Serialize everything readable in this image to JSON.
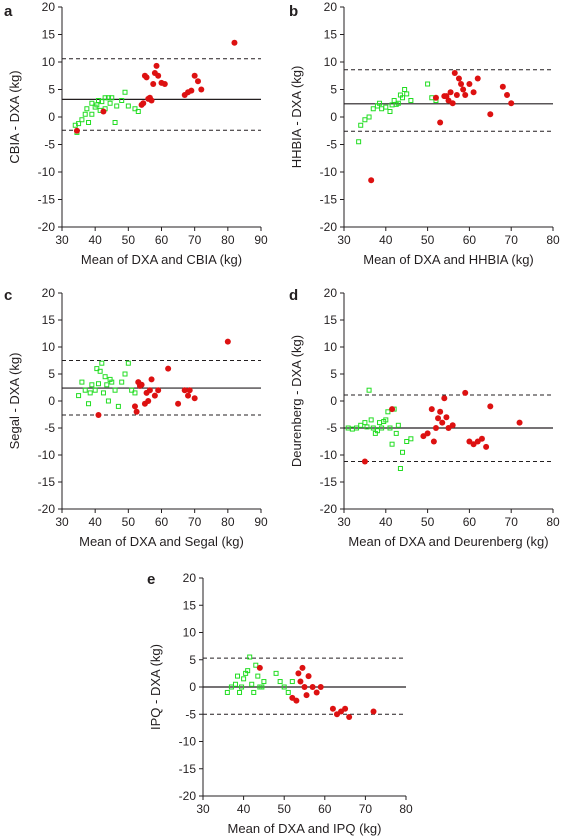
{
  "chart_data": [
    {
      "panel": "a",
      "type": "scatter",
      "xlabel": "Mean of DXA and CBIA (kg)",
      "ylabel": "CBIA - DXA (kg)",
      "xlim": [
        30,
        90
      ],
      "ylim": [
        -20,
        20
      ],
      "xticks": [
        30,
        40,
        50,
        60,
        70,
        80,
        90
      ],
      "yticks": [
        -20,
        -15,
        -10,
        -5,
        0,
        5,
        10,
        15,
        20
      ],
      "mean_line": 3.2,
      "upper_loa": 10.6,
      "lower_loa": -2.4,
      "series": [
        {
          "marker": "open-square",
          "color": "#22dd22",
          "points": [
            [
              34,
              -1.5
            ],
            [
              34.5,
              -2.8
            ],
            [
              35,
              -1.2
            ],
            [
              36,
              -0.5
            ],
            [
              37,
              0.5
            ],
            [
              37.5,
              1.5
            ],
            [
              38,
              -1
            ],
            [
              39,
              2.5
            ],
            [
              39,
              0.5
            ],
            [
              40,
              1.8
            ],
            [
              40.5,
              2.2
            ],
            [
              41,
              3
            ],
            [
              41.5,
              1.2
            ],
            [
              42,
              2.8
            ],
            [
              43,
              3.5
            ],
            [
              43,
              1.5
            ],
            [
              44,
              3.5
            ],
            [
              44.5,
              2.5
            ],
            [
              45,
              3.5
            ],
            [
              46,
              -1
            ],
            [
              46.5,
              2
            ],
            [
              48,
              3
            ],
            [
              49,
              4.5
            ],
            [
              50,
              2
            ],
            [
              52,
              1.5
            ],
            [
              53,
              1
            ]
          ]
        },
        {
          "marker": "filled-circle",
          "color": "#dd1111",
          "points": [
            [
              34.5,
              -2.5
            ],
            [
              42.5,
              1
            ],
            [
              54,
              2.2
            ],
            [
              54.5,
              2.5
            ],
            [
              55,
              7.5
            ],
            [
              55.5,
              7.2
            ],
            [
              56,
              3.3
            ],
            [
              56.5,
              3.5
            ],
            [
              57,
              3
            ],
            [
              57.5,
              6
            ],
            [
              58,
              8
            ],
            [
              58.5,
              9.3
            ],
            [
              59,
              7.5
            ],
            [
              60,
              6.2
            ],
            [
              61,
              6
            ],
            [
              67,
              4
            ],
            [
              68,
              4.5
            ],
            [
              69,
              4.8
            ],
            [
              70,
              7.5
            ],
            [
              71,
              6.5
            ],
            [
              72,
              5
            ],
            [
              82,
              13.5
            ]
          ]
        }
      ]
    },
    {
      "panel": "b",
      "type": "scatter",
      "xlabel": "Mean of DXA and HHBIA (kg)",
      "ylabel": "HHBIA - DXA (kg)",
      "xlim": [
        30,
        80
      ],
      "ylim": [
        -20,
        20
      ],
      "xticks": [
        30,
        40,
        50,
        60,
        70,
        80
      ],
      "yticks": [
        -20,
        -15,
        -10,
        -5,
        0,
        5,
        10,
        15,
        20
      ],
      "mean_line": 2.4,
      "upper_loa": 8.6,
      "lower_loa": -2.6,
      "series": [
        {
          "marker": "open-square",
          "color": "#22dd22",
          "points": [
            [
              33.5,
              -4.5
            ],
            [
              34,
              -1.5
            ],
            [
              35,
              -0.5
            ],
            [
              36,
              0
            ],
            [
              37,
              1.5
            ],
            [
              38,
              2
            ],
            [
              38.5,
              2.5
            ],
            [
              39,
              1.5
            ],
            [
              40,
              1.8
            ],
            [
              41,
              1
            ],
            [
              41.5,
              2.2
            ],
            [
              42,
              3
            ],
            [
              42.5,
              2.3
            ],
            [
              43,
              2.5
            ],
            [
              43.5,
              4
            ],
            [
              44,
              3.5
            ],
            [
              44.5,
              5
            ],
            [
              45,
              4.2
            ],
            [
              46,
              3
            ],
            [
              50,
              6
            ],
            [
              51,
              3.5
            ],
            [
              52,
              3
            ]
          ]
        },
        {
          "marker": "filled-circle",
          "color": "#dd1111",
          "points": [
            [
              36.5,
              -11.5
            ],
            [
              52,
              3.5
            ],
            [
              53,
              -1
            ],
            [
              54,
              3.8
            ],
            [
              54.5,
              3.8
            ],
            [
              55,
              3
            ],
            [
              55.5,
              4.5
            ],
            [
              56,
              2.5
            ],
            [
              56.5,
              8
            ],
            [
              57,
              4
            ],
            [
              57.5,
              7
            ],
            [
              58,
              6
            ],
            [
              58.5,
              5
            ],
            [
              59,
              4
            ],
            [
              60,
              6
            ],
            [
              61,
              4.5
            ],
            [
              62,
              7
            ],
            [
              65,
              0.5
            ],
            [
              68,
              5.5
            ],
            [
              69,
              4
            ],
            [
              70,
              2.5
            ]
          ]
        }
      ]
    },
    {
      "panel": "c",
      "type": "scatter",
      "xlabel": "Mean of DXA and Segal (kg)",
      "ylabel": "Segal - DXA (kg)",
      "xlim": [
        30,
        90
      ],
      "ylim": [
        -20,
        20
      ],
      "xticks": [
        30,
        40,
        50,
        60,
        70,
        80,
        90
      ],
      "yticks": [
        -20,
        -15,
        -10,
        -5,
        0,
        5,
        10,
        15,
        20
      ],
      "mean_line": 2.4,
      "upper_loa": 7.5,
      "lower_loa": -2.6,
      "series": [
        {
          "marker": "open-square",
          "color": "#22dd22",
          "points": [
            [
              35,
              1
            ],
            [
              36,
              3.5
            ],
            [
              37,
              2
            ],
            [
              38,
              -0.5
            ],
            [
              38.5,
              1.5
            ],
            [
              39,
              3
            ],
            [
              40,
              2
            ],
            [
              40.5,
              6
            ],
            [
              41,
              3.2
            ],
            [
              41.5,
              5.5
            ],
            [
              42,
              7
            ],
            [
              42.5,
              1.5
            ],
            [
              43,
              4.5
            ],
            [
              43.5,
              3
            ],
            [
              44,
              0
            ],
            [
              44.5,
              4
            ],
            [
              45,
              3.5
            ],
            [
              46,
              2
            ],
            [
              47,
              -1
            ],
            [
              48,
              3.5
            ],
            [
              49,
              5
            ],
            [
              50,
              7
            ],
            [
              51,
              2
            ],
            [
              52,
              1.5
            ]
          ]
        },
        {
          "marker": "filled-circle",
          "color": "#dd1111",
          "points": [
            [
              41,
              -2.6
            ],
            [
              52,
              -1
            ],
            [
              52.5,
              -2
            ],
            [
              53,
              3.5
            ],
            [
              53.5,
              2.8
            ],
            [
              54,
              3
            ],
            [
              55,
              -0.5
            ],
            [
              55.5,
              1.5
            ],
            [
              56,
              0
            ],
            [
              56.5,
              2
            ],
            [
              57,
              4
            ],
            [
              58,
              1
            ],
            [
              59,
              2
            ],
            [
              62,
              6
            ],
            [
              65,
              -0.5
            ],
            [
              67,
              2
            ],
            [
              68,
              1
            ],
            [
              68.5,
              2
            ],
            [
              70,
              0.5
            ],
            [
              80,
              11
            ]
          ]
        }
      ]
    },
    {
      "panel": "d",
      "type": "scatter",
      "xlabel": "Mean of DXA and Deurenberg (kg)",
      "ylabel": "Deurenberg - DXA (kg)",
      "xlim": [
        30,
        80
      ],
      "ylim": [
        -20,
        20
      ],
      "xticks": [
        30,
        40,
        50,
        60,
        70,
        80
      ],
      "yticks": [
        -20,
        -15,
        -10,
        -5,
        0,
        5,
        10,
        15,
        20
      ],
      "mean_line": -5.0,
      "upper_loa": 1.1,
      "lower_loa": -11.2,
      "series": [
        {
          "marker": "open-square",
          "color": "#22dd22",
          "points": [
            [
              31,
              -5
            ],
            [
              32,
              -5.2
            ],
            [
              33,
              -5
            ],
            [
              34,
              -4.5
            ],
            [
              35,
              -4
            ],
            [
              35.5,
              -4.8
            ],
            [
              36,
              2
            ],
            [
              36.5,
              -3.5
            ],
            [
              37,
              -5
            ],
            [
              37.5,
              -6
            ],
            [
              38,
              -5.5
            ],
            [
              38.5,
              -4
            ],
            [
              39,
              -5
            ],
            [
              39.5,
              -3.8
            ],
            [
              40,
              -3.5
            ],
            [
              40.5,
              -2
            ],
            [
              41,
              -5
            ],
            [
              41.5,
              -8
            ],
            [
              42,
              -1.5
            ],
            [
              42.5,
              -6
            ],
            [
              43,
              -4.5
            ],
            [
              43.5,
              -12.5
            ],
            [
              44,
              -9.5
            ],
            [
              45,
              -7.5
            ],
            [
              46,
              -7
            ]
          ]
        },
        {
          "marker": "filled-circle",
          "color": "#dd1111",
          "points": [
            [
              35,
              -11.2
            ],
            [
              41.5,
              -1.5
            ],
            [
              49,
              -6.5
            ],
            [
              50,
              -6
            ],
            [
              51,
              -1.5
            ],
            [
              51.5,
              -7.5
            ],
            [
              52,
              -5
            ],
            [
              52.5,
              -3.2
            ],
            [
              53,
              -2
            ],
            [
              53.5,
              -4
            ],
            [
              54,
              0.5
            ],
            [
              54.5,
              -3
            ],
            [
              55,
              -5
            ],
            [
              56,
              -4.5
            ],
            [
              59,
              1.5
            ],
            [
              60,
              -7.5
            ],
            [
              61,
              -8
            ],
            [
              62,
              -7.5
            ],
            [
              63,
              -7
            ],
            [
              64,
              -8.5
            ],
            [
              65,
              -1
            ],
            [
              72,
              -4
            ]
          ]
        }
      ]
    },
    {
      "panel": "e",
      "type": "scatter",
      "xlabel": "Mean of DXA and IPQ (kg)",
      "ylabel": "IPQ - DXA (kg)",
      "xlim": [
        30,
        80
      ],
      "ylim": [
        -20,
        20
      ],
      "xticks": [
        30,
        40,
        50,
        60,
        70,
        80
      ],
      "yticks": [
        -20,
        -15,
        -10,
        -5,
        0,
        5,
        10,
        15,
        20
      ],
      "mean_line": 0,
      "upper_loa": 5.3,
      "lower_loa": -5.0,
      "series": [
        {
          "marker": "open-square",
          "color": "#22dd22",
          "points": [
            [
              36,
              -1
            ],
            [
              37,
              0
            ],
            [
              38,
              0.5
            ],
            [
              38.5,
              2
            ],
            [
              39,
              -1
            ],
            [
              39.5,
              0
            ],
            [
              40,
              1.5
            ],
            [
              40.5,
              2.5
            ],
            [
              41,
              3
            ],
            [
              41.5,
              5.5
            ],
            [
              42,
              0.5
            ],
            [
              42.5,
              -1
            ],
            [
              43,
              4
            ],
            [
              43.5,
              2
            ],
            [
              44,
              0
            ],
            [
              44.5,
              0
            ],
            [
              45,
              1
            ],
            [
              48,
              2.5
            ],
            [
              49,
              1
            ],
            [
              50,
              0
            ],
            [
              51,
              -1
            ],
            [
              52,
              1
            ]
          ]
        },
        {
          "marker": "filled-circle",
          "color": "#dd1111",
          "points": [
            [
              44,
              3.5
            ],
            [
              52,
              -2
            ],
            [
              53,
              -2.5
            ],
            [
              53.5,
              2.5
            ],
            [
              54,
              1
            ],
            [
              54.5,
              3.5
            ],
            [
              55,
              0
            ],
            [
              55.5,
              -1.5
            ],
            [
              56,
              2
            ],
            [
              57,
              0
            ],
            [
              58,
              -1
            ],
            [
              59,
              0
            ],
            [
              62,
              -4
            ],
            [
              63,
              -5
            ],
            [
              64,
              -4.5
            ],
            [
              65,
              -4
            ],
            [
              66,
              -5.5
            ],
            [
              72,
              -4.5
            ]
          ]
        }
      ]
    }
  ]
}
